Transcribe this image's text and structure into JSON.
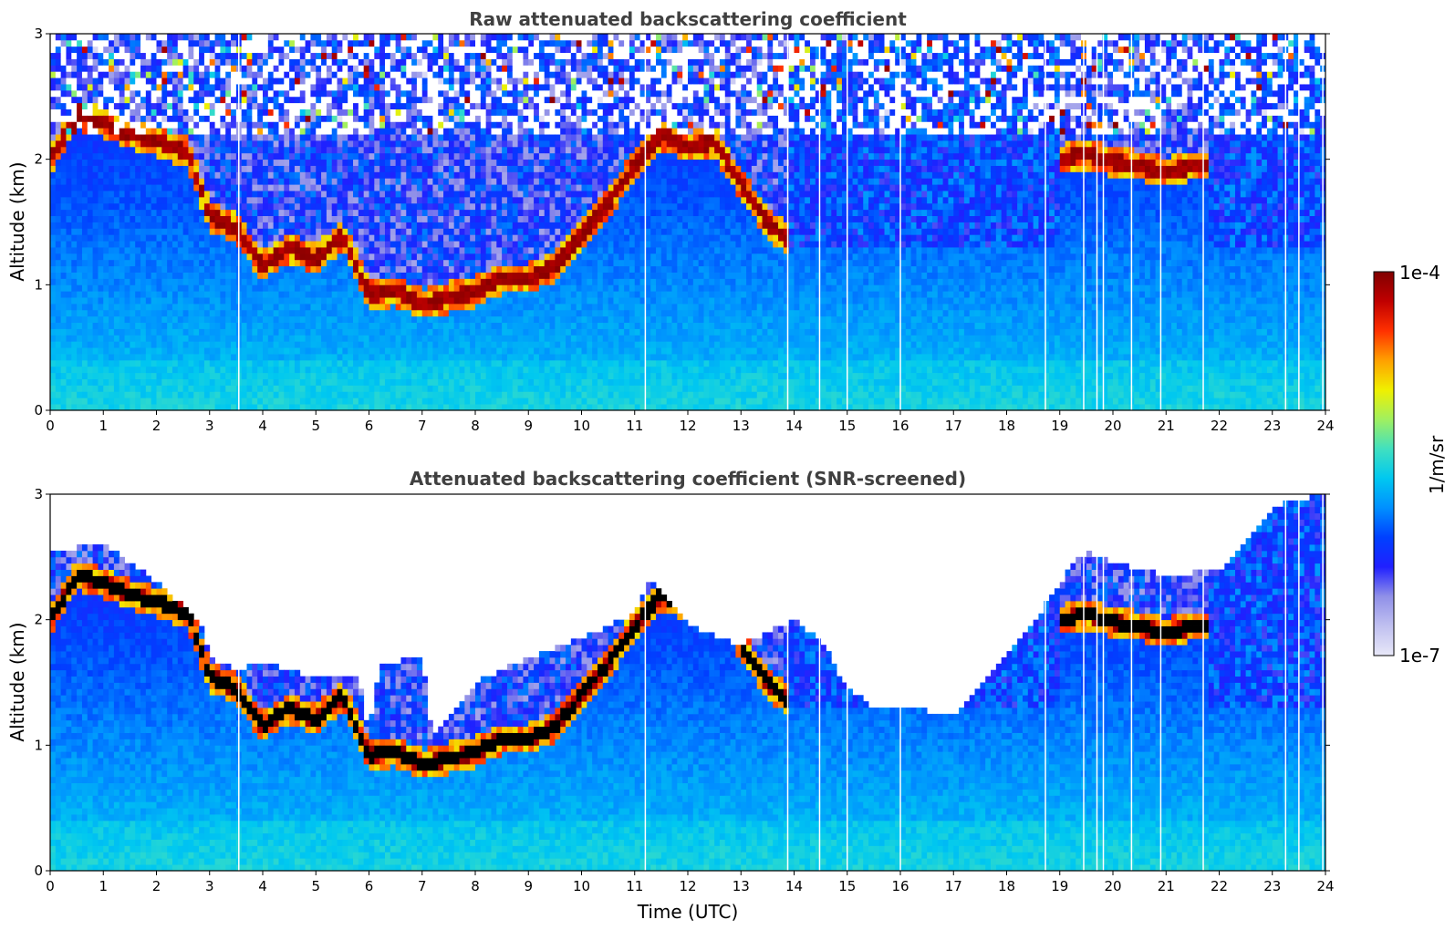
{
  "chart_data": [
    {
      "type": "heatmap",
      "title": "Raw attenuated backscattering coefficient",
      "xlabel": "",
      "ylabel": "Altitude (km)",
      "xlim": [
        0,
        24
      ],
      "ylim": [
        0,
        3
      ],
      "xticks": [
        "0",
        "1",
        "2",
        "3",
        "4",
        "5",
        "6",
        "7",
        "8",
        "9",
        "10",
        "11",
        "12",
        "13",
        "14",
        "15",
        "16",
        "17",
        "18",
        "19",
        "20",
        "21",
        "22",
        "23",
        "24"
      ],
      "yticks": [
        "0",
        "1",
        "2",
        "3"
      ],
      "screened": false,
      "cloud_layer": {
        "time_h": [
          0.0,
          0.5,
          1.0,
          1.5,
          2.0,
          2.6,
          3.0,
          3.5,
          4.0,
          4.5,
          5.0,
          5.5,
          6.0,
          6.5,
          7.0,
          7.5,
          8.0,
          8.5,
          9.0,
          9.5,
          10.0,
          10.5,
          11.0,
          11.5,
          12.0,
          12.5,
          13.0,
          13.5,
          13.9,
          19.0,
          19.5,
          20.0,
          20.5,
          21.0,
          21.5,
          21.8
        ],
        "altitude_km": [
          2.0,
          2.35,
          2.3,
          2.2,
          2.15,
          2.05,
          1.55,
          1.45,
          1.15,
          1.3,
          1.2,
          1.4,
          0.92,
          0.95,
          0.85,
          0.9,
          0.95,
          1.05,
          1.05,
          1.15,
          1.4,
          1.65,
          1.95,
          2.2,
          2.1,
          2.15,
          1.8,
          1.5,
          1.35,
          2.0,
          2.05,
          1.98,
          1.95,
          1.9,
          1.95,
          1.95
        ]
      },
      "missing_profiles_h": [
        3.55,
        11.2,
        13.88,
        14.48,
        15.0,
        16.0,
        18.73,
        19.45,
        19.7,
        19.82,
        20.35,
        20.9,
        21.7,
        23.25,
        23.5,
        23.95
      ]
    },
    {
      "type": "heatmap",
      "title": "Attenuated backscattering coefficient (SNR-screened)",
      "xlabel": "Time (UTC)",
      "ylabel": "Altitude (km)",
      "xlim": [
        0,
        24
      ],
      "ylim": [
        0,
        3
      ],
      "xticks": [
        "0",
        "1",
        "2",
        "3",
        "4",
        "5",
        "6",
        "7",
        "8",
        "9",
        "10",
        "11",
        "12",
        "13",
        "14",
        "15",
        "16",
        "17",
        "18",
        "19",
        "20",
        "21",
        "22",
        "23",
        "24"
      ],
      "yticks": [
        "0",
        "1",
        "2",
        "3"
      ],
      "screened": true,
      "signal_top": {
        "time_h": [
          0.0,
          1.0,
          2.0,
          2.8,
          3.0,
          3.5,
          4.0,
          5.0,
          5.8,
          6.0,
          6.2,
          7.0,
          7.2,
          8.0,
          9.0,
          10.0,
          11.0,
          11.3,
          12.0,
          13.0,
          14.0,
          14.5,
          15.0,
          15.5,
          16.0,
          17.0,
          17.5,
          18.0,
          18.5,
          19.0,
          19.5,
          20.0,
          21.0,
          22.0,
          22.5,
          23.0,
          24.0
        ],
        "altitude_km": [
          2.55,
          2.6,
          2.3,
          2.0,
          1.7,
          1.6,
          1.65,
          1.55,
          1.55,
          1.1,
          1.65,
          1.7,
          1.05,
          1.5,
          1.7,
          1.85,
          2.05,
          2.35,
          1.95,
          1.8,
          2.0,
          1.85,
          1.45,
          1.3,
          1.3,
          1.25,
          1.45,
          1.75,
          1.95,
          2.3,
          2.55,
          2.45,
          2.35,
          2.4,
          2.6,
          2.9,
          3.0
        ]
      },
      "missing_profiles_h": [
        3.55,
        11.2,
        13.88,
        14.48,
        15.0,
        16.0,
        18.73,
        19.45,
        19.7,
        19.82,
        20.35,
        20.9,
        21.7,
        23.25,
        23.5,
        23.95
      ]
    }
  ],
  "colorbar": {
    "label": "1/m/sr",
    "max_label": "1e-4",
    "min_label": "1e-7",
    "colormap": [
      "#e8e8f8",
      "#c0c0f0",
      "#9090e8",
      "#2020ff",
      "#0040ff",
      "#0090ff",
      "#00c8f0",
      "#40e0c0",
      "#a0f060",
      "#f0f000",
      "#ffa000",
      "#ff3000",
      "#c00000",
      "#800000"
    ]
  }
}
